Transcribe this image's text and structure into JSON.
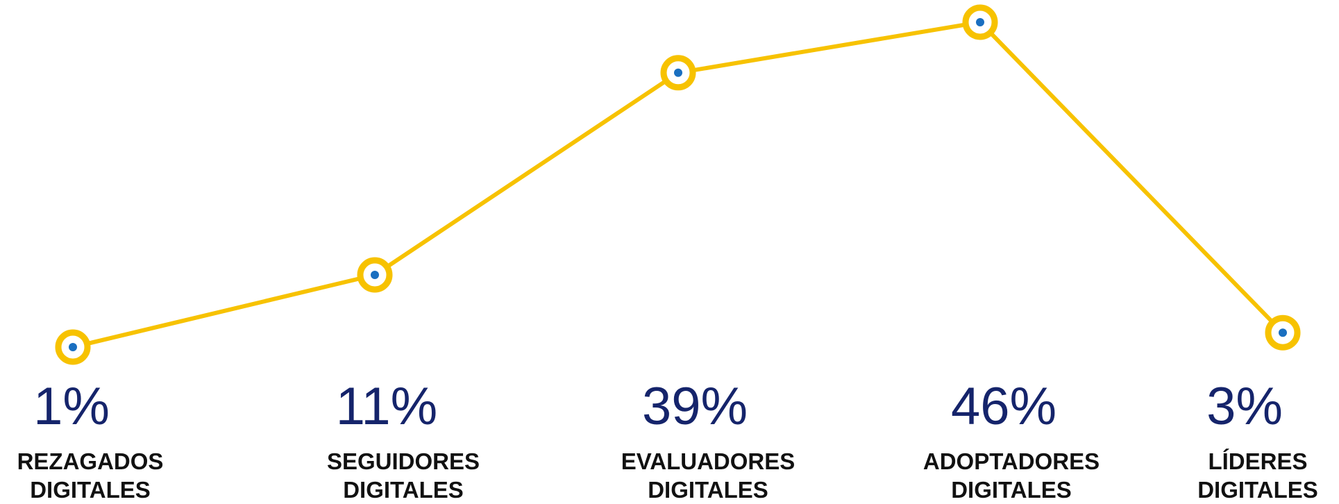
{
  "chart_data": {
    "type": "line",
    "categories": [
      "REZAGADOS DIGITALES",
      "SEGUIDORES DIGITALES",
      "EVALUADORES DIGITALES",
      "ADOPTADORES DIGITALES",
      "LÍDERES DIGITALES"
    ],
    "values": [
      1,
      11,
      39,
      46,
      3
    ],
    "value_labels": [
      "1%",
      "11%",
      "39%",
      "46%",
      "3%"
    ],
    "color": "#f7c200",
    "marker_color": "#1a6fc0"
  }
}
